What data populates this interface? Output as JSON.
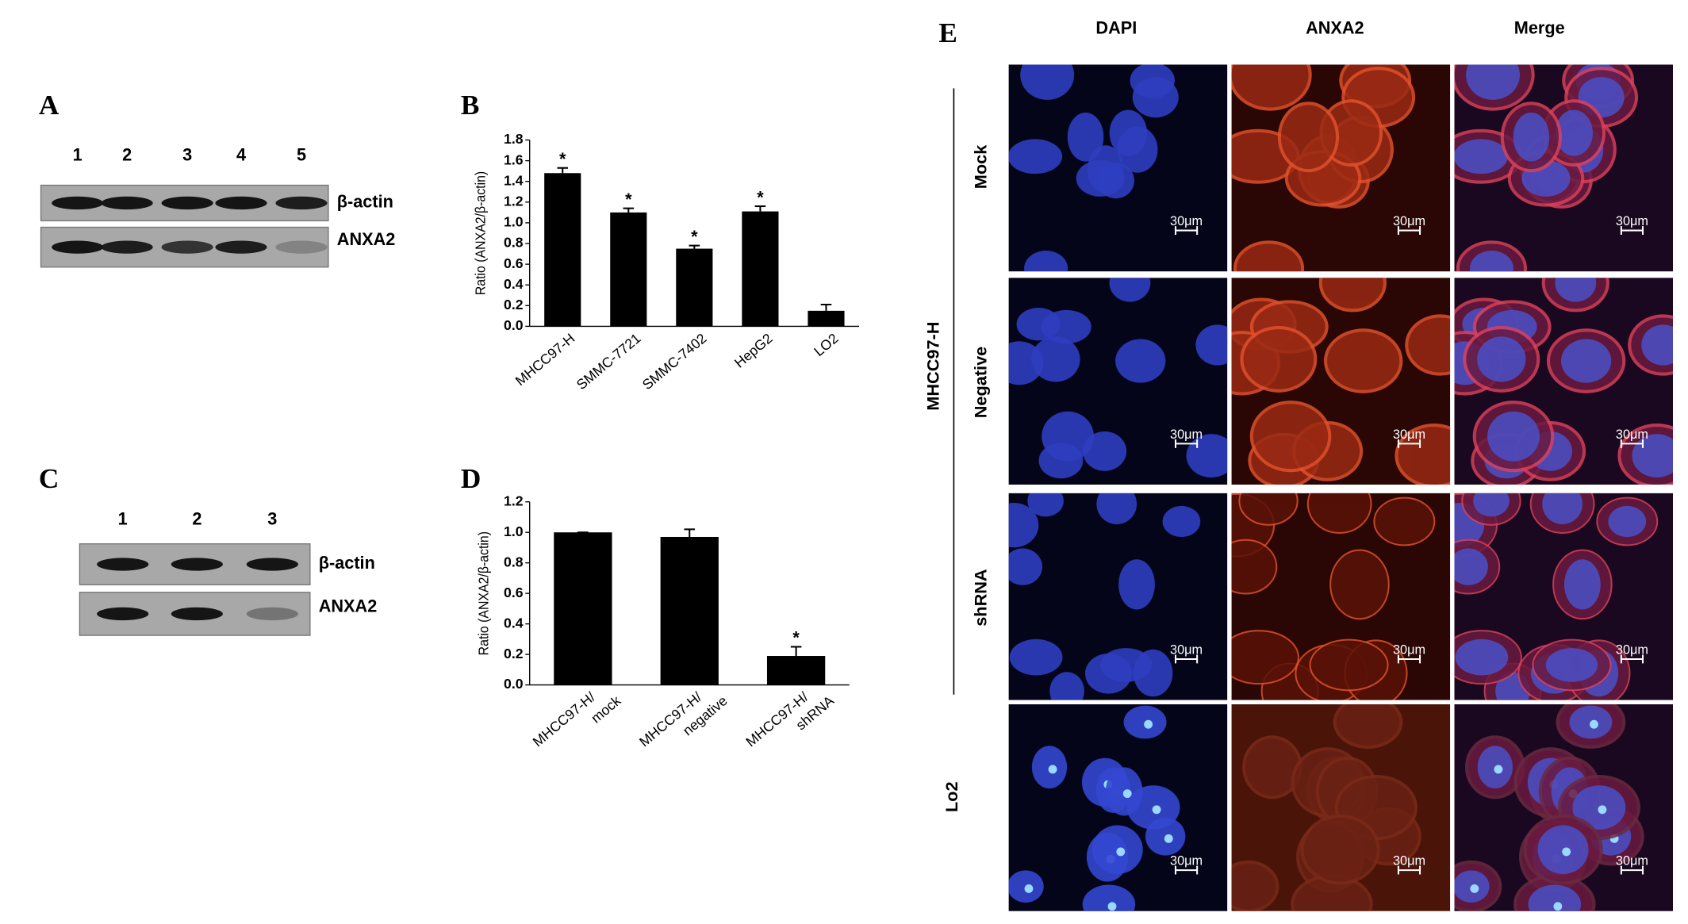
{
  "panel_labels": [
    "A",
    "B",
    "C",
    "D",
    "E"
  ],
  "blot_a": {
    "lanes": [
      "1",
      "2",
      "3",
      "4",
      "5"
    ],
    "bands": [
      "β-actin",
      "ANXA2"
    ]
  },
  "blot_c": {
    "lanes": [
      "1",
      "2",
      "3"
    ],
    "bands": [
      "β-actin",
      "ANXA2"
    ]
  },
  "chart_data": [
    {
      "type": "bar",
      "ylabel": "Ratio (ANXA2/β-actin)",
      "color": "#000000",
      "categories": [
        "MHCC97-H",
        "SMMC-7721",
        "SMMC-7402",
        "HepG2",
        "LO2"
      ],
      "values": [
        1.48,
        1.1,
        0.75,
        1.11,
        0.15
      ],
      "errors": [
        0.05,
        0.04,
        0.03,
        0.05,
        0.06
      ],
      "markers": [
        "*",
        "*",
        "*",
        "*",
        null
      ],
      "ylim": [
        0,
        1.8
      ],
      "yticks": [
        {
          "value": 0,
          "label": "0.0"
        },
        0.2,
        0.4,
        0.6,
        0.8,
        {
          "value": 1,
          "label": "1.0"
        },
        1.2,
        1.4,
        1.6,
        1.8
      ]
    },
    {
      "type": "bar",
      "ylabel": "Ratio (ANXA2/β-actin)",
      "color": "#000000",
      "categories": [
        [
          "MHCC97-H/",
          "mock"
        ],
        [
          "MHCC97-H/",
          "negative"
        ],
        [
          "MHCC97-H/",
          "shRNA"
        ]
      ],
      "values": [
        1.0,
        0.97,
        0.19
      ],
      "errors": [
        0,
        0.05,
        0.06
      ],
      "markers": [
        null,
        null,
        "*"
      ],
      "ylim": [
        0,
        1.2
      ],
      "yticks": [
        {
          "value": 0,
          "label": "0.0"
        },
        0.2,
        0.4,
        0.6,
        0.8,
        {
          "value": 1,
          "label": "1.0"
        },
        1.2
      ]
    }
  ],
  "panel_e": {
    "columns": [
      "DAPI",
      "ANXA2",
      "Merge"
    ],
    "rows": [
      "Mock",
      "Negative",
      "shRNA",
      "Lo2"
    ],
    "group_label": "MHCC97-H",
    "scale_label": "30μm"
  }
}
